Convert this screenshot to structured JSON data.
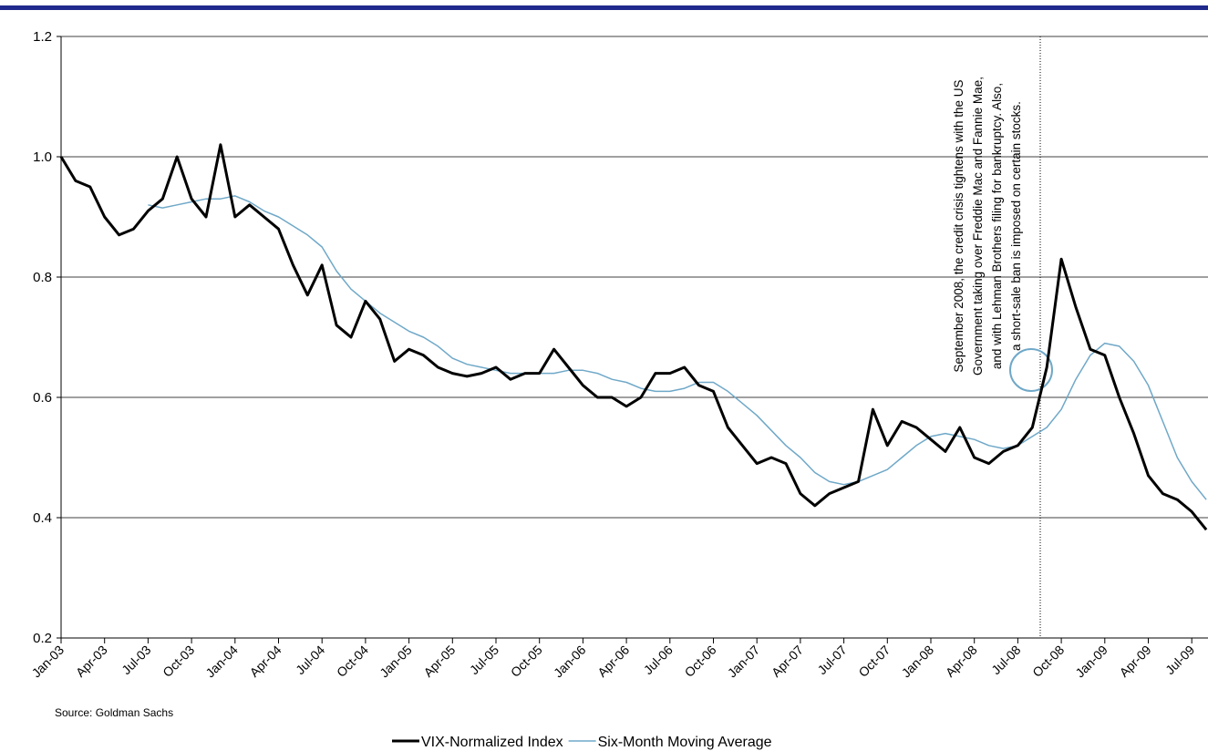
{
  "chart_data": {
    "type": "line",
    "x": [
      "2003-01",
      "2003-02",
      "2003-03",
      "2003-04",
      "2003-05",
      "2003-06",
      "2003-07",
      "2003-08",
      "2003-09",
      "2003-10",
      "2003-11",
      "2003-12",
      "2004-01",
      "2004-02",
      "2004-03",
      "2004-04",
      "2004-05",
      "2004-06",
      "2004-07",
      "2004-08",
      "2004-09",
      "2004-10",
      "2004-11",
      "2004-12",
      "2005-01",
      "2005-02",
      "2005-03",
      "2005-04",
      "2005-05",
      "2005-06",
      "2005-07",
      "2005-08",
      "2005-09",
      "2005-10",
      "2005-11",
      "2005-12",
      "2006-01",
      "2006-02",
      "2006-03",
      "2006-04",
      "2006-05",
      "2006-06",
      "2006-07",
      "2006-08",
      "2006-09",
      "2006-10",
      "2006-11",
      "2006-12",
      "2007-01",
      "2007-02",
      "2007-03",
      "2007-04",
      "2007-05",
      "2007-06",
      "2007-07",
      "2007-08",
      "2007-09",
      "2007-10",
      "2007-11",
      "2007-12",
      "2008-01",
      "2008-02",
      "2008-03",
      "2008-04",
      "2008-05",
      "2008-06",
      "2008-07",
      "2008-08",
      "2008-09",
      "2008-10",
      "2008-11",
      "2008-12",
      "2009-01",
      "2009-02",
      "2009-03",
      "2009-04",
      "2009-05",
      "2009-06",
      "2009-07",
      "2009-08"
    ],
    "series": [
      {
        "name": "VIX-Normalized Index",
        "color": "#000000",
        "width": 3,
        "values": [
          1.0,
          0.96,
          0.95,
          0.9,
          0.87,
          0.88,
          0.91,
          0.93,
          1.0,
          0.93,
          0.9,
          1.02,
          0.9,
          0.92,
          0.9,
          0.88,
          0.82,
          0.77,
          0.82,
          0.72,
          0.7,
          0.76,
          0.73,
          0.66,
          0.68,
          0.67,
          0.65,
          0.64,
          0.635,
          0.64,
          0.65,
          0.63,
          0.64,
          0.64,
          0.68,
          0.65,
          0.62,
          0.6,
          0.6,
          0.585,
          0.6,
          0.64,
          0.64,
          0.65,
          0.62,
          0.61,
          0.55,
          0.52,
          0.49,
          0.5,
          0.49,
          0.44,
          0.42,
          0.44,
          0.45,
          0.46,
          0.58,
          0.52,
          0.56,
          0.55,
          0.53,
          0.51,
          0.55,
          0.5,
          0.49,
          0.51,
          0.52,
          0.55,
          0.65,
          0.83,
          0.75,
          0.68,
          0.67,
          0.6,
          0.54,
          0.47,
          0.44,
          0.43,
          0.41,
          0.38
        ]
      },
      {
        "name": "Six-Month Moving Average",
        "color": "#6fa8c8",
        "width": 1.5,
        "values": [
          null,
          null,
          null,
          null,
          null,
          null,
          0.92,
          0.915,
          0.92,
          0.925,
          0.93,
          0.93,
          0.935,
          0.925,
          0.91,
          0.9,
          0.885,
          0.87,
          0.85,
          0.81,
          0.78,
          0.76,
          0.74,
          0.725,
          0.71,
          0.7,
          0.685,
          0.665,
          0.655,
          0.65,
          0.645,
          0.64,
          0.64,
          0.64,
          0.64,
          0.645,
          0.645,
          0.64,
          0.63,
          0.625,
          0.615,
          0.61,
          0.61,
          0.615,
          0.625,
          0.625,
          0.61,
          0.59,
          0.57,
          0.545,
          0.52,
          0.5,
          0.475,
          0.46,
          0.455,
          0.46,
          0.47,
          0.48,
          0.5,
          0.52,
          0.535,
          0.54,
          0.535,
          0.53,
          0.52,
          0.515,
          0.52,
          0.535,
          0.55,
          0.58,
          0.63,
          0.67,
          0.69,
          0.685,
          0.66,
          0.62,
          0.56,
          0.5,
          0.46,
          0.43
        ]
      }
    ],
    "xlim": [
      "2003-01",
      "2009-08"
    ],
    "xticks": [
      {
        "value": "2003-01",
        "label": "Jan-03"
      },
      {
        "value": "2003-04",
        "label": "Apr-03"
      },
      {
        "value": "2003-07",
        "label": "Jul-03"
      },
      {
        "value": "2003-10",
        "label": "Oct-03"
      },
      {
        "value": "2004-01",
        "label": "Jan-04"
      },
      {
        "value": "2004-04",
        "label": "Apr-04"
      },
      {
        "value": "2004-07",
        "label": "Jul-04"
      },
      {
        "value": "2004-10",
        "label": "Oct-04"
      },
      {
        "value": "2005-01",
        "label": "Jan-05"
      },
      {
        "value": "2005-04",
        "label": "Apr-05"
      },
      {
        "value": "2005-07",
        "label": "Jul-05"
      },
      {
        "value": "2005-10",
        "label": "Oct-05"
      },
      {
        "value": "2006-01",
        "label": "Jan-06"
      },
      {
        "value": "2006-04",
        "label": "Apr-06"
      },
      {
        "value": "2006-07",
        "label": "Jul-06"
      },
      {
        "value": "2006-10",
        "label": "Oct-06"
      },
      {
        "value": "2007-01",
        "label": "Jan-07"
      },
      {
        "value": "2007-04",
        "label": "Apr-07"
      },
      {
        "value": "2007-07",
        "label": "Jul-07"
      },
      {
        "value": "2007-10",
        "label": "Oct-07"
      },
      {
        "value": "2008-01",
        "label": "Jan-08"
      },
      {
        "value": "2008-04",
        "label": "Apr-08"
      },
      {
        "value": "2008-07",
        "label": "Jul-08"
      },
      {
        "value": "2008-10",
        "label": "Oct-08"
      },
      {
        "value": "2009-01",
        "label": "Jan-09"
      },
      {
        "value": "2009-04",
        "label": "Apr-09"
      },
      {
        "value": "2009-07",
        "label": "Jul-09"
      }
    ],
    "ylim": [
      0.2,
      1.2
    ],
    "yticks": [
      {
        "value": 0.2,
        "label": "0.2"
      },
      {
        "value": 0.4,
        "label": "0.4"
      },
      {
        "value": 0.6,
        "label": "0.6"
      },
      {
        "value": 0.8,
        "label": "0.8"
      },
      {
        "value": 1.0,
        "label": "1.0"
      },
      {
        "value": 1.2,
        "label": "1.2"
      }
    ],
    "grid": true,
    "annotation": [
      "September 2008, the credit crisis tightens with the US",
      "Government taking over Freddie Mac and Fannie Mae,",
      "and with Lehman Brothers filing for bankruptcy. Also,",
      "a short-sale ban is imposed on certain stocks."
    ],
    "source": "Source: Goldman Sachs"
  }
}
